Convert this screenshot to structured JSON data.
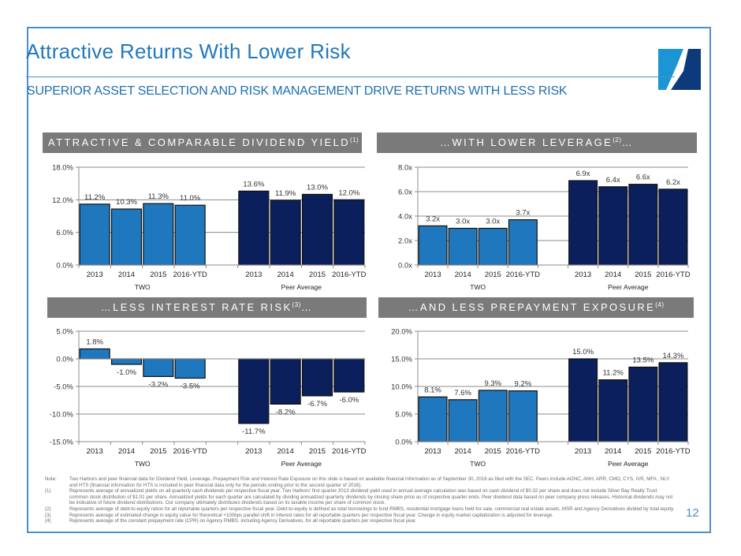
{
  "slide": {
    "title": "Attractive Returns With Lower Risk",
    "subtitle": "SUPERIOR ASSET SELECTION AND RISK MANAGEMENT DRIVE RETURNS WITH LESS RISK",
    "page_number": "12",
    "colors": {
      "accent": "#1f78bf",
      "border": "#4a90cf",
      "header_bg": "#7a7a7a",
      "two_bar": "#1f77bd",
      "peer_bar": "#0b1f5c"
    }
  },
  "sections": [
    {
      "title": "ATTRACTIVE & COMPARABLE DIVIDEND YIELD",
      "footnote": "(1)",
      "suffix": ""
    },
    {
      "title": "…WITH LOWER LEVERAGE",
      "footnote": "(2)",
      "suffix": "…"
    },
    {
      "title": "…LESS INTEREST RATE RISK",
      "footnote": "(3)",
      "suffix": "…"
    },
    {
      "title": "…AND LESS PREPAYMENT EXPOSURE",
      "footnote": "(4)",
      "suffix": ""
    }
  ],
  "chart_data": [
    {
      "type": "bar",
      "title": "Attractive & Comparable Dividend Yield",
      "categories": [
        "2013",
        "2014",
        "2015",
        "2016-YTD"
      ],
      "groups": [
        "TWO",
        "Peer Average"
      ],
      "series": [
        {
          "name": "TWO",
          "values": [
            11.2,
            10.3,
            11.3,
            11.0
          ],
          "labels": [
            "11.2%",
            "10.3%",
            "11.3%",
            "11.0%"
          ]
        },
        {
          "name": "Peer Average",
          "values": [
            13.6,
            11.9,
            13.0,
            12.0
          ],
          "labels": [
            "13.6%",
            "11.9%",
            "13.0%",
            "12.0%"
          ]
        }
      ],
      "yticks": [
        "0.0%",
        "6.0%",
        "12.0%",
        "18.0%"
      ],
      "ytick_values": [
        0,
        6,
        12,
        18
      ],
      "ylim": [
        0,
        18
      ],
      "grid": true,
      "xlabel": "",
      "ylabel": ""
    },
    {
      "type": "bar",
      "title": "With Lower Leverage",
      "categories": [
        "2013",
        "2014",
        "2015",
        "2016-YTD"
      ],
      "groups": [
        "TWO",
        "Peer Average"
      ],
      "series": [
        {
          "name": "TWO",
          "values": [
            3.2,
            3.0,
            3.0,
            3.7
          ],
          "labels": [
            "3.2x",
            "3.0x",
            "3.0x",
            "3.7x"
          ]
        },
        {
          "name": "Peer Average",
          "values": [
            6.9,
            6.4,
            6.6,
            6.2
          ],
          "labels": [
            "6.9x",
            "6.4x",
            "6.6x",
            "6.2x"
          ]
        }
      ],
      "yticks": [
        "0.0x",
        "2.0x",
        "4.0x",
        "6.0x",
        "8.0x"
      ],
      "ytick_values": [
        0,
        2,
        4,
        6,
        8
      ],
      "ylim": [
        0,
        8
      ],
      "grid": true,
      "xlabel": "",
      "ylabel": ""
    },
    {
      "type": "bar",
      "title": "Less Interest Rate Risk",
      "categories": [
        "2013",
        "2014",
        "2015",
        "2016-YTD"
      ],
      "groups": [
        "TWO",
        "Peer Average"
      ],
      "series": [
        {
          "name": "TWO",
          "values": [
            1.8,
            -1.0,
            -3.2,
            -3.5
          ],
          "labels": [
            "1.8%",
            "-1.0%",
            "-3.2%",
            "-3.5%"
          ]
        },
        {
          "name": "Peer Average",
          "values": [
            -11.7,
            -8.2,
            -6.7,
            -6.0
          ],
          "labels": [
            "-11.7%",
            "-8.2%",
            "-6.7%",
            "-6.0%"
          ]
        }
      ],
      "yticks": [
        "-15.0%",
        "-10.0%",
        "-5.0%",
        "0.0%",
        "5.0%"
      ],
      "ytick_values": [
        -15,
        -10,
        -5,
        0,
        5
      ],
      "ylim": [
        -15,
        5
      ],
      "grid": true,
      "xlabel": "",
      "ylabel": ""
    },
    {
      "type": "bar",
      "title": "And Less Prepayment Exposure",
      "categories": [
        "2013",
        "2014",
        "2015",
        "2016-YTD"
      ],
      "groups": [
        "TWO",
        "Peer Average"
      ],
      "series": [
        {
          "name": "TWO",
          "values": [
            8.1,
            7.6,
            9.3,
            9.2
          ],
          "labels": [
            "8.1%",
            "7.6%",
            "9.3%",
            "9.2%"
          ]
        },
        {
          "name": "Peer Average",
          "values": [
            15.0,
            11.2,
            13.5,
            14.3
          ],
          "labels": [
            "15.0%",
            "11.2%",
            "13.5%",
            "14.3%"
          ]
        }
      ],
      "yticks": [
        "0.0%",
        "5.0%",
        "10.0%",
        "15.0%",
        "20.0%"
      ],
      "ytick_values": [
        0,
        5,
        10,
        15,
        20
      ],
      "ylim": [
        0,
        20
      ],
      "grid": true,
      "xlabel": "",
      "ylabel": ""
    }
  ],
  "notes": [
    {
      "key": "Note:",
      "text": "Two Harbors and peer financial data for Dividend Yield, Leverage, Prepayment Risk and Interest Rate Exposure on this slide is based on available financial information as of September 30, 2016 as filed with the SEC.  Peers include AGNC, ANH, ARR, CMO, CYS, IVR, MFA , NLY and HTS (financial information for HTS is included in peer financial data only for the periods ending prior to the second quarter of 2016)."
    },
    {
      "key": "(1)",
      "text": "Represents average of annualized yields on all quarterly cash dividends per respective fiscal year.  Two Harbors' first quarter 2013 dividend yield used in annual average calculation was based on cash dividend of $0.32 per share and does not include Silver Bay Realty Trust common stock distribution of $1.01 per share.  Annualized yields for each quarter are calculated by dividing annualized quarterly dividends by closing share price as of respective quarter ends. Peer dividend data based on peer company press releases. Historical dividends may not be indicative of future dividend distributions. Our company ultimately distributes dividends based on its taxable income per share of common stock."
    },
    {
      "key": "(2)",
      "text": "Represents average of debt-to-equity ratios for all reportable quarters per respective fiscal year.  Debt-to-equity is defined as total borrowings to fund RMBS, residential mortgage loans held-for-sale, commercial real estate assets, MSR and Agency Derivatives divided by total equity."
    },
    {
      "key": "(3)",
      "text": "Represents average of estimated change in equity value for theoretical +100bps parallel shift in interest rates for all reportable quarters per respective fiscal year. Change in equity market capitalization is adjusted for leverage."
    },
    {
      "key": "(4)",
      "text": "Represents average of the constant prepayment rate (CPR) on Agency RMBS, including Agency Derivatives, for all reportable quarters per respective fiscal year."
    }
  ]
}
